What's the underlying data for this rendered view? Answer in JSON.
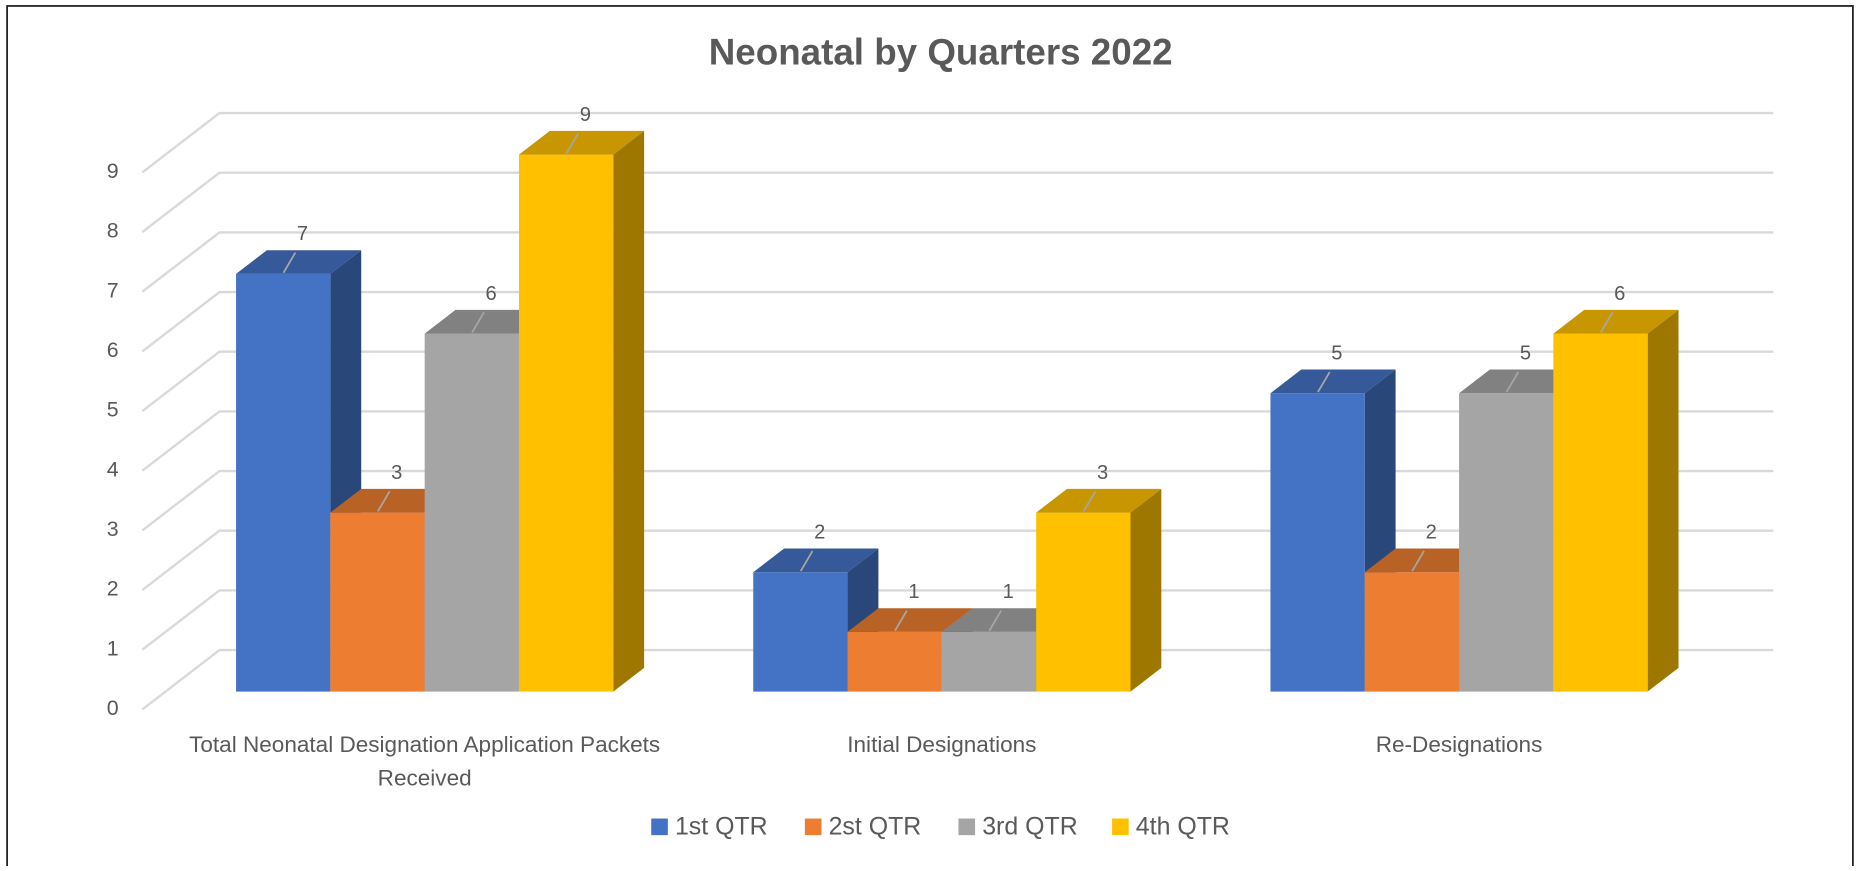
{
  "chart_data": {
    "type": "bar3d",
    "title": "Neonatal by Quarters 2022",
    "categories": [
      "Total Neonatal Designation Application Packets Received",
      "Initial Designations",
      "Re-Designations"
    ],
    "series": [
      {
        "name": "1st QTR",
        "color": "#4472c4",
        "values": [
          7,
          2,
          5
        ]
      },
      {
        "name": "2st QTR",
        "color": "#ed7d31",
        "values": [
          3,
          1,
          2
        ]
      },
      {
        "name": "3rd QTR",
        "color": "#a5a5a5",
        "values": [
          6,
          1,
          5
        ]
      },
      {
        "name": "4th QTR",
        "color": "#ffc000",
        "values": [
          9,
          3,
          6
        ]
      }
    ],
    "ylim": [
      0,
      9
    ],
    "yticks": [
      0,
      1,
      2,
      3,
      4,
      5,
      6,
      7,
      8,
      9
    ],
    "grid": true,
    "legend": "bottom"
  }
}
